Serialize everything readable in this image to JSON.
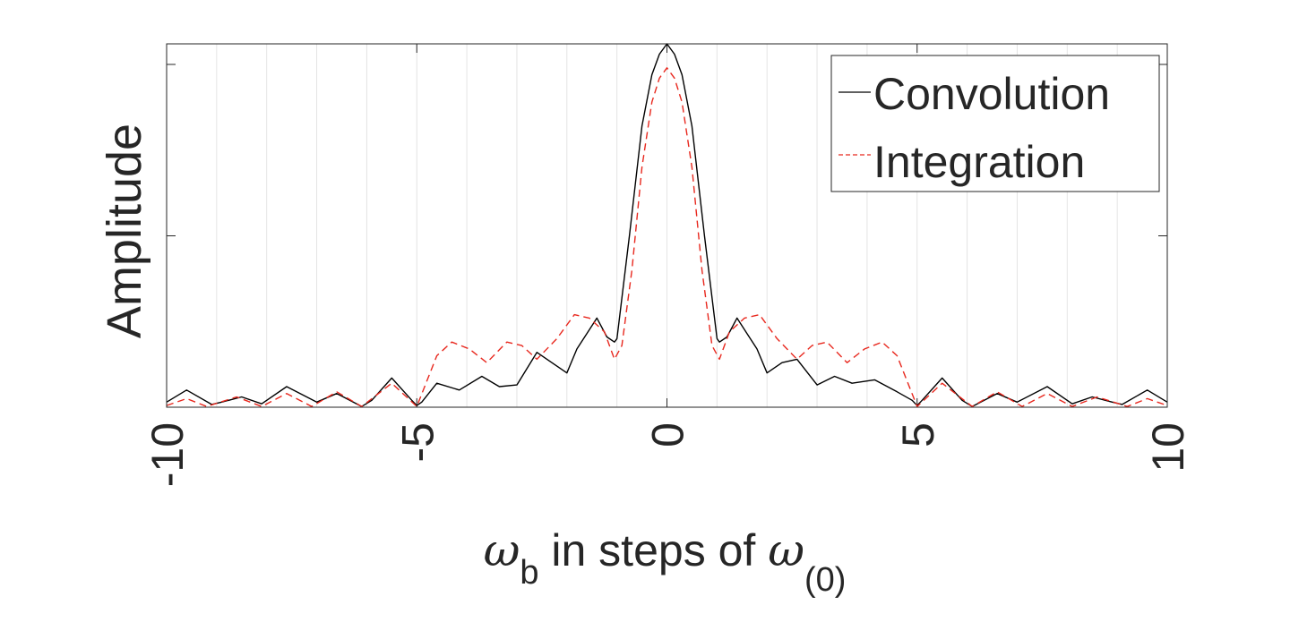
{
  "chart_data": {
    "type": "line",
    "title": "",
    "xlabel": {
      "symbol": "ω",
      "sub": "b",
      "middle": " in steps of ",
      "symbol2": "ω",
      "sub2": "(0)"
    },
    "ylabel": "Amplitude",
    "xlim": [
      -10,
      10
    ],
    "ylim": [
      0,
      1.06
    ],
    "xticks": [
      -10,
      -5,
      0,
      5,
      10
    ],
    "xtick_labels": [
      "-10",
      "-5",
      "0",
      "5",
      "10"
    ],
    "yticks": [
      0.5,
      1.0
    ],
    "minor_vertical_grid_step": 1,
    "legend": {
      "position": "top-right"
    },
    "series": [
      {
        "name": "Convolution",
        "color": "#000000",
        "dash": "solid",
        "x": [
          -10,
          -9.6,
          -9.1,
          -8.9,
          -8.5,
          -8.1,
          -7.6,
          -7.0,
          -6.6,
          -6.1,
          -5.9,
          -5.5,
          -5.1,
          -5.0,
          -4.9,
          -4.6,
          -4.15,
          -3.7,
          -3.35,
          -3.0,
          -2.6,
          -2.3,
          -2.0,
          -1.8,
          -1.6,
          -1.4,
          -1.2,
          -1.05,
          -1.0,
          -0.75,
          -0.5,
          -0.3,
          -0.15,
          0,
          0.15,
          0.3,
          0.5,
          0.75,
          1.0,
          1.05,
          1.2,
          1.4,
          1.6,
          1.8,
          2.0,
          2.3,
          2.6,
          3.0,
          3.35,
          3.7,
          4.15,
          4.6,
          4.9,
          5.0,
          5.1,
          5.5,
          5.9,
          6.1,
          6.6,
          7.0,
          7.6,
          8.1,
          8.5,
          8.9,
          9.1,
          9.6,
          10
        ],
        "y": [
          0.015,
          0.05,
          0.008,
          0.015,
          0.03,
          0.01,
          0.06,
          0.015,
          0.04,
          0.002,
          0.02,
          0.085,
          0.02,
          0.005,
          0.015,
          0.07,
          0.05,
          0.09,
          0.06,
          0.065,
          0.16,
          0.13,
          0.1,
          0.17,
          0.215,
          0.26,
          0.205,
          0.19,
          0.2,
          0.5,
          0.82,
          0.97,
          1.03,
          1.06,
          1.03,
          0.97,
          0.82,
          0.5,
          0.2,
          0.19,
          0.205,
          0.26,
          0.215,
          0.17,
          0.1,
          0.13,
          0.14,
          0.065,
          0.09,
          0.07,
          0.08,
          0.045,
          0.02,
          0.005,
          0.02,
          0.085,
          0.02,
          0.002,
          0.04,
          0.015,
          0.06,
          0.01,
          0.03,
          0.015,
          0.008,
          0.05,
          0.015
        ]
      },
      {
        "name": "Integration",
        "color": "#e8281e",
        "dash": "8,5",
        "x": [
          -10,
          -9.6,
          -9.2,
          -8.6,
          -8.1,
          -7.6,
          -7.1,
          -6.6,
          -6.1,
          -5.5,
          -5.0,
          -4.6,
          -4.3,
          -3.95,
          -3.6,
          -3.2,
          -2.9,
          -2.6,
          -2.2,
          -1.85,
          -1.55,
          -1.25,
          -1.05,
          -0.9,
          -0.7,
          -0.5,
          -0.3,
          -0.15,
          0,
          0.15,
          0.3,
          0.5,
          0.7,
          0.9,
          1.05,
          1.25,
          1.55,
          1.85,
          2.2,
          2.6,
          2.9,
          3.2,
          3.6,
          3.95,
          4.3,
          4.6,
          5.0,
          5.5,
          6.1,
          6.6,
          7.1,
          7.6,
          8.1,
          8.6,
          9.2,
          9.6,
          10
        ],
        "y": [
          0.005,
          0.025,
          0.002,
          0.03,
          0.002,
          0.04,
          0.002,
          0.045,
          0.002,
          0.07,
          0.002,
          0.15,
          0.19,
          0.17,
          0.13,
          0.19,
          0.18,
          0.14,
          0.2,
          0.27,
          0.26,
          0.22,
          0.14,
          0.18,
          0.4,
          0.7,
          0.89,
          0.96,
          0.99,
          0.96,
          0.89,
          0.7,
          0.4,
          0.18,
          0.14,
          0.22,
          0.26,
          0.27,
          0.2,
          0.14,
          0.18,
          0.19,
          0.13,
          0.17,
          0.19,
          0.15,
          0.002,
          0.07,
          0.002,
          0.045,
          0.002,
          0.04,
          0.002,
          0.03,
          0.002,
          0.025,
          0.005
        ]
      }
    ]
  }
}
